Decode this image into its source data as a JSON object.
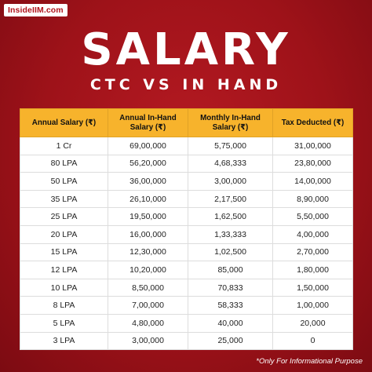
{
  "brand": {
    "label": "InsideIIM.com"
  },
  "header": {
    "title": "SALARY",
    "subtitle": "CTC VS IN HAND"
  },
  "table": {
    "columns": [
      "Annual Salary (₹)",
      "Annual In-Hand Salary (₹)",
      "Monthly In-Hand Salary (₹)",
      "Tax Deducted (₹)"
    ],
    "rows": [
      [
        "1 Cr",
        "69,00,000",
        "5,75,000",
        "31,00,000"
      ],
      [
        "80 LPA",
        "56,20,000",
        "4,68,333",
        "23,80,000"
      ],
      [
        "50 LPA",
        "36,00,000",
        "3,00,000",
        "14,00,000"
      ],
      [
        "35 LPA",
        "26,10,000",
        "2,17,500",
        "8,90,000"
      ],
      [
        "25 LPA",
        "19,50,000",
        "1,62,500",
        "5,50,000"
      ],
      [
        "20 LPA",
        "16,00,000",
        "1,33,333",
        "4,00,000"
      ],
      [
        "15 LPA",
        "12,30,000",
        "1,02,500",
        "2,70,000"
      ],
      [
        "12 LPA",
        "10,20,000",
        "85,000",
        "1,80,000"
      ],
      [
        "10 LPA",
        "8,50,000",
        "70,833",
        "1,50,000"
      ],
      [
        "8 LPA",
        "7,00,000",
        "58,333",
        "1,00,000"
      ],
      [
        "5 LPA",
        "4,80,000",
        "40,000",
        "20,000"
      ],
      [
        "3 LPA",
        "3,00,000",
        "25,000",
        "0"
      ]
    ]
  },
  "footnote": "*Only For Informational Purpose",
  "colors": {
    "background": "#a8141c",
    "header_row": "#f7b32c",
    "text_light": "#ffffff"
  }
}
